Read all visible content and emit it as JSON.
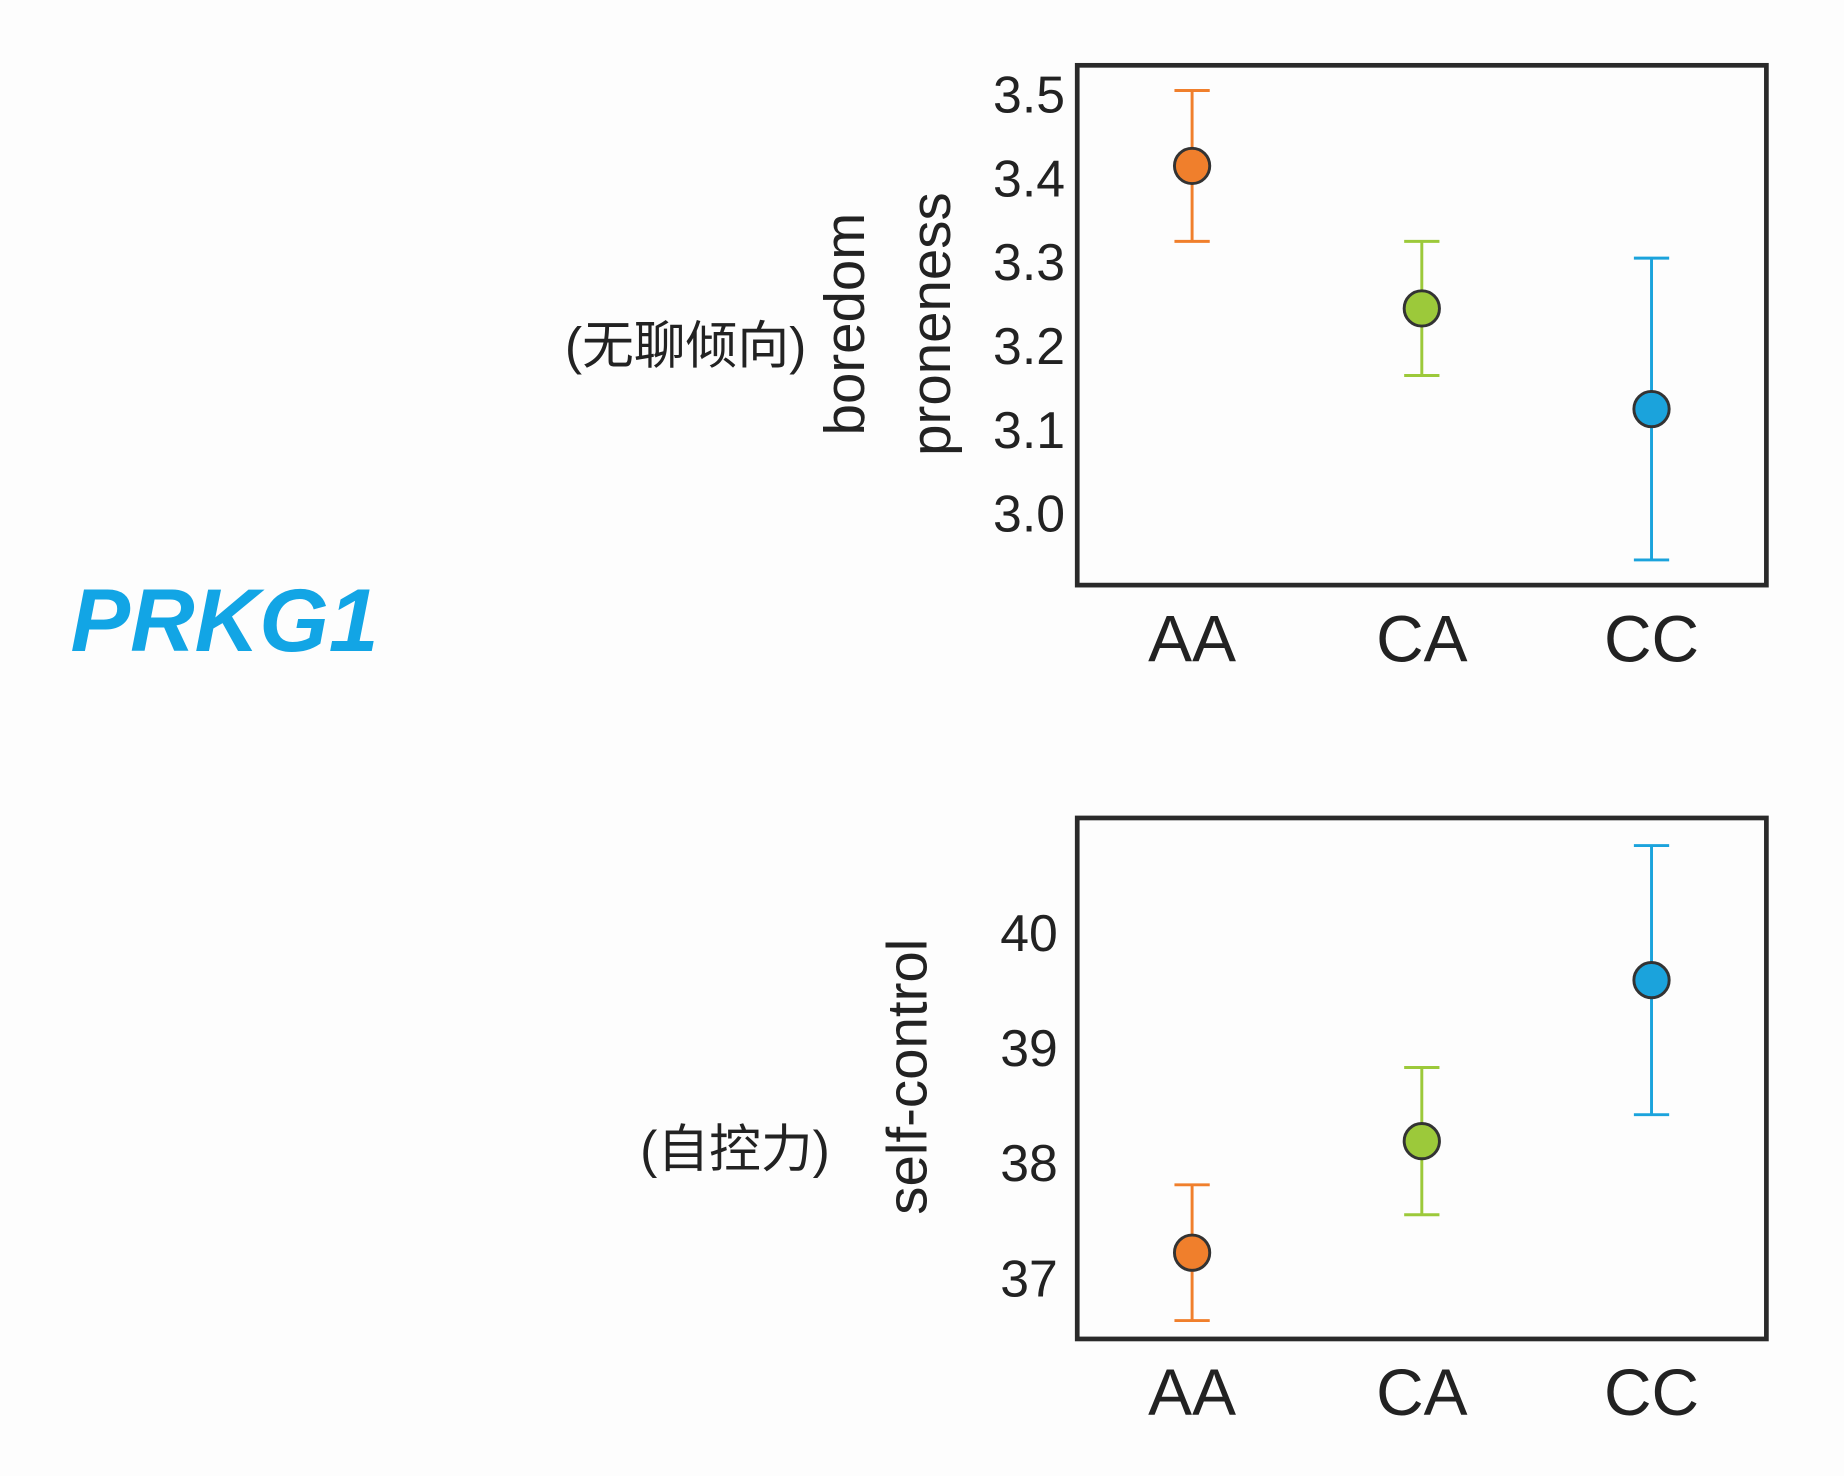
{
  "title": "PRKG1",
  "chart_data": [
    {
      "type": "errorbar",
      "ylabel": [
        "boredom",
        "proneness"
      ],
      "annotation": "(无聊倾向)",
      "categories": [
        "AA",
        "CA",
        "CC"
      ],
      "values": [
        3.42,
        3.25,
        3.13
      ],
      "errors": [
        0.09,
        0.08,
        0.18
      ],
      "colors": [
        "#f07f2c",
        "#9cc93a",
        "#1ba3dc"
      ],
      "ylim": [
        2.92,
        3.54
      ],
      "yticks": [
        {
          "value": 3.0,
          "label": "3.0"
        },
        3.1,
        3.2,
        3.3,
        3.4,
        3.5
      ]
    },
    {
      "type": "errorbar",
      "ylabel": [
        "self-control"
      ],
      "annotation": "(自控力)",
      "categories": [
        "AA",
        "CA",
        "CC"
      ],
      "values": [
        37.26,
        38.23,
        39.63
      ],
      "errors": [
        0.59,
        0.64,
        1.17
      ],
      "colors": [
        "#f07f2c",
        "#9cc93a",
        "#1ba3dc"
      ],
      "ylim": [
        36.51,
        41.04
      ],
      "yticks": [
        37,
        38,
        39,
        40
      ]
    }
  ]
}
